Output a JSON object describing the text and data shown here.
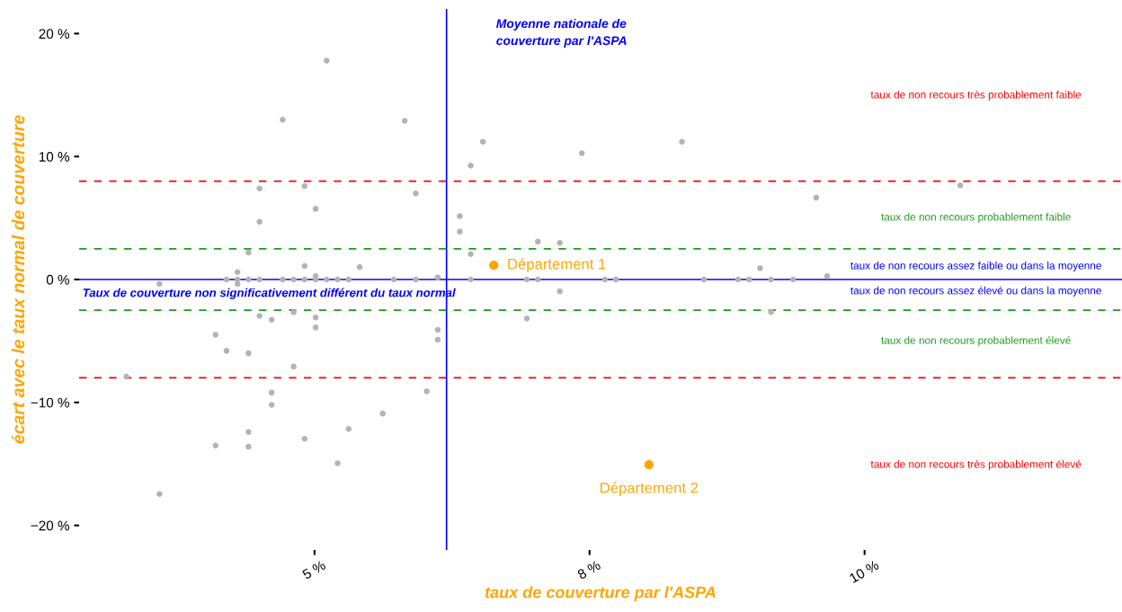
{
  "chart_data": {
    "type": "scatter",
    "xlabel": "taux de couverture par l'ASPA",
    "ylabel": "écart avec le taux normal de couverture",
    "xlim": [
      2.86,
      12.34
    ],
    "ylim": [
      -22,
      22
    ],
    "xticks": [
      {
        "value": 5,
        "label": "5 %"
      },
      {
        "value": 7.5,
        "label": "8 %"
      },
      {
        "value": 10,
        "label": "10 %"
      }
    ],
    "yticks": [
      {
        "value": -20,
        "label": "−20 %"
      },
      {
        "value": -10,
        "label": "−10 %"
      },
      {
        "value": 0,
        "label": "0 %"
      },
      {
        "value": 10,
        "label": "10 %"
      },
      {
        "value": 20,
        "label": "20 %"
      }
    ],
    "grid": false,
    "legend": false,
    "marker": "circle",
    "series": [
      {
        "color": "#b3b3b3",
        "x": [
          5.11,
          4.71,
          5.82,
          4.5,
          4.91,
          5.01,
          5.92,
          4.5,
          4.4,
          4.91,
          5.41,
          4.3,
          4.2,
          4.3,
          4.4,
          4.5,
          4.71,
          4.81,
          4.91,
          5.01,
          5.11,
          5.21,
          5.31,
          5.72,
          5.92,
          5.01,
          6.12,
          3.59,
          4.3,
          4.5,
          4.61,
          4.81,
          5.01,
          5.01,
          6.12,
          6.12,
          4.1,
          4.2,
          4.4,
          4.81,
          3.29,
          4.61,
          4.61,
          6.02,
          5.62,
          5.31,
          4.4,
          4.91,
          4.1,
          4.4,
          5.21,
          3.59,
          6.53,
          6.42,
          7.43,
          8.34,
          6.32,
          6.32,
          7.03,
          7.23,
          6.42,
          9.56,
          9.05,
          9.66,
          7.23,
          6.93,
          9.15,
          6.42,
          6.93,
          7.03,
          7.64,
          7.74,
          8.54,
          8.85,
          8.95,
          9.15,
          9.35,
          10.87
        ],
        "values": [
          17.8,
          13.0,
          12.9,
          7.4,
          7.6,
          5.75,
          7.0,
          4.7,
          2.2,
          1.1,
          1.0,
          0.6,
          0,
          0,
          0,
          0,
          0,
          0,
          0,
          0,
          0,
          0,
          0,
          0,
          0,
          0.27,
          0.17,
          -0.36,
          -0.36,
          -2.96,
          -3.27,
          -2.67,
          -3.08,
          -3.9,
          -4.09,
          -4.9,
          -4.5,
          -5.8,
          -6.0,
          -7.08,
          -7.9,
          -9.2,
          -10.2,
          -9.1,
          -10.9,
          -12.15,
          -12.4,
          -12.95,
          -13.5,
          -13.6,
          -14.95,
          -17.45,
          11.2,
          9.26,
          10.27,
          11.2,
          5.15,
          3.9,
          3.08,
          2.98,
          2.07,
          6.66,
          0.92,
          0.27,
          -0.96,
          -3.18,
          -2.65,
          0,
          0,
          0,
          0,
          0,
          0,
          0,
          0,
          0,
          0,
          7.65
        ]
      },
      {
        "name": "Département 1",
        "color": "#ffa500",
        "x": [
          6.63
        ],
        "values": [
          1.16
        ]
      },
      {
        "name": "Département 2",
        "color": "#ffa500",
        "x": [
          8.04
        ],
        "values": [
          -15.07
        ]
      }
    ],
    "ref_lines": [
      {
        "axis": "x",
        "value": 6.2,
        "label": "Moyenne nationale de\ncouverture par l'ASPA",
        "color": "#0000ff",
        "line_style": "solid"
      },
      {
        "axis": "y",
        "value": 0,
        "label": "Taux de couverture non significativement différent du taux normal",
        "color": "#0000ff",
        "line_style": "solid"
      },
      {
        "axis": "y",
        "value": 8,
        "color": "#ff0000",
        "line_style": "dashed"
      },
      {
        "axis": "y",
        "value": -8,
        "color": "#ff0000",
        "line_style": "dashed"
      },
      {
        "axis": "y",
        "value": 2.5,
        "color": "#1a9e1a",
        "line_style": "dashed"
      },
      {
        "axis": "y",
        "value": -2.5,
        "color": "#1a9e1a",
        "line_style": "dashed"
      }
    ],
    "annotations": [
      "taux de non recours très probablement faible",
      "taux de non recours probablement faible",
      "taux de non recours assez faible ou dans la moyenne",
      "taux de non recours assez élevé ou dans la moyenne",
      "taux de non recours probablement élevé",
      "taux de non recours très probablement élevé"
    ]
  }
}
